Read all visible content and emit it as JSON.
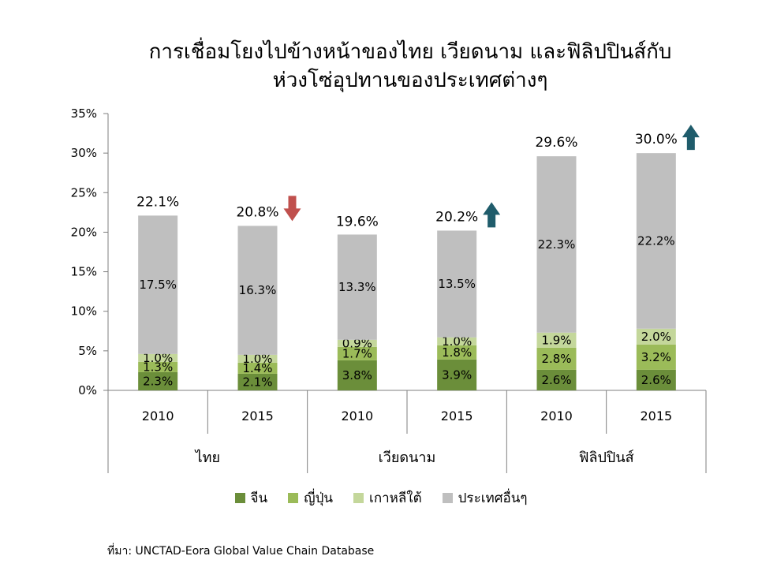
{
  "title": {
    "line1": "การเชื่อมโยงไปข้างหน้าของไทย เวียดนาม และฟิลิปปินส์กับ",
    "line2": "ห่วงโซ่อุปทานของประเทศต่างๆ"
  },
  "source": "ที่มา: UNCTAD-Eora Global Value Chain Database",
  "colors": {
    "china": "#6b8e3a",
    "japan": "#9bbb59",
    "korea": "#c4d79b",
    "others": "#bfbfbf",
    "arrow_down": "#c0504d",
    "arrow_up": "#1f5c6b"
  },
  "chart_data": {
    "type": "bar",
    "stacked": true,
    "y_axis": {
      "min": 0,
      "max": 35,
      "step": 5,
      "unit": "%",
      "tick_labels": [
        "0%",
        "5%",
        "10%",
        "15%",
        "20%",
        "25%",
        "30%",
        "35%"
      ]
    },
    "x_years": [
      "2010",
      "2015",
      "2010",
      "2015",
      "2010",
      "2015"
    ],
    "groups": [
      "ไทย",
      "เวียดนาม",
      "ฟิลิปปินส์"
    ],
    "series": [
      {
        "name": "จีน",
        "key": "china",
        "values": [
          2.3,
          2.1,
          3.8,
          3.9,
          2.6,
          2.6
        ],
        "labels": [
          "2.3%",
          "2.1%",
          "3.8%",
          "3.9%",
          "2.6%",
          "2.6%"
        ]
      },
      {
        "name": "ญี่ปุ่น",
        "key": "japan",
        "values": [
          1.3,
          1.4,
          1.7,
          1.8,
          2.8,
          3.2
        ],
        "labels": [
          "1.3%",
          "1.4%",
          "1.7%",
          "1.8%",
          "2.8%",
          "3.2%"
        ]
      },
      {
        "name": "เกาหลีใต้",
        "key": "korea",
        "values": [
          1.0,
          1.0,
          0.9,
          1.0,
          1.9,
          2.0
        ],
        "labels": [
          "1.0%",
          "1.0%",
          "0.9%",
          "1.0%",
          "1.9%",
          "2.0%"
        ]
      },
      {
        "name": "ประเทศอื่นๆ",
        "key": "others",
        "values": [
          17.5,
          16.3,
          13.3,
          13.5,
          22.3,
          22.2
        ],
        "labels": [
          "17.5%",
          "16.3%",
          "13.3%",
          "13.5%",
          "22.3%",
          "22.2%"
        ]
      }
    ],
    "totals": [
      22.1,
      20.8,
      19.6,
      20.2,
      29.6,
      30.0
    ],
    "total_labels": [
      "22.1%",
      "20.8%",
      "19.6%",
      "20.2%",
      "29.6%",
      "30.0%"
    ],
    "trend_arrows": [
      null,
      "down",
      null,
      "up",
      null,
      "up"
    ],
    "legend_position": "bottom",
    "grid": false
  }
}
